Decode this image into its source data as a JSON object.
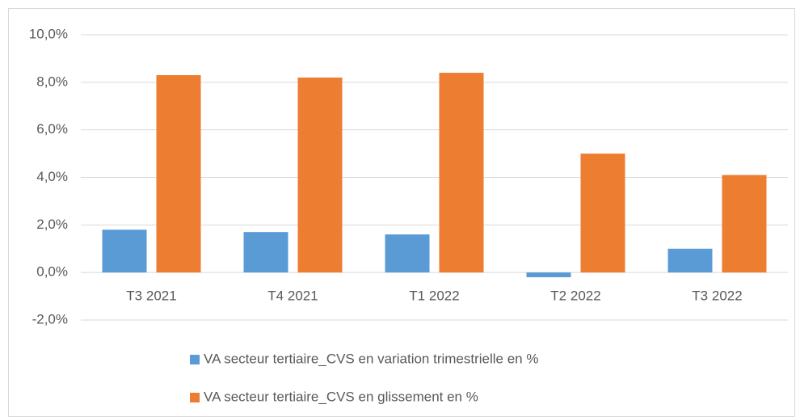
{
  "chart_data": {
    "type": "bar",
    "categories": [
      "T3 2021",
      "T4 2021",
      "T1 2022",
      "T2 2022",
      "T3 2022"
    ],
    "series": [
      {
        "name": "VA secteur tertiaire_CVS en variation trimestrielle en %",
        "color": "#5b9bd5",
        "values": [
          1.8,
          1.7,
          1.6,
          -0.2,
          1.0
        ]
      },
      {
        "name": "VA secteur tertiaire_CVS en glissement en %",
        "color": "#ed7d31",
        "values": [
          8.3,
          8.2,
          8.4,
          5.0,
          4.1
        ]
      }
    ],
    "ylim": [
      -2,
      10
    ],
    "yticks": [
      {
        "value": -2,
        "label": "-2,0%"
      },
      {
        "value": 0,
        "label": "0,0%"
      },
      {
        "value": 2,
        "label": "2,0%"
      },
      {
        "value": 4,
        "label": "4,0%"
      },
      {
        "value": 6,
        "label": "6,0%"
      },
      {
        "value": 8,
        "label": "8,0%"
      },
      {
        "value": 10,
        "label": "10,0%"
      }
    ],
    "grid": true
  }
}
